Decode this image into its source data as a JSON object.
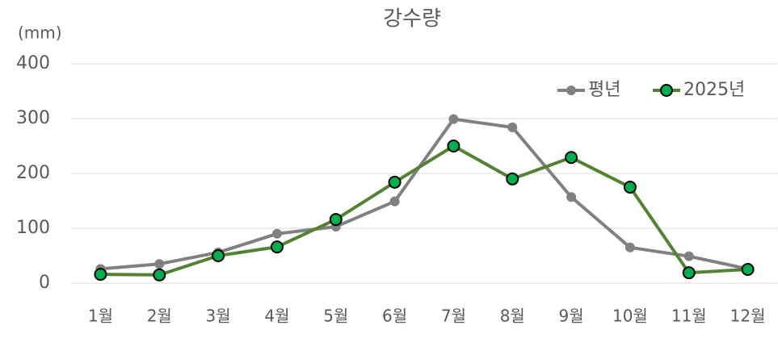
{
  "chart_data": {
    "type": "line",
    "title": "강수량",
    "y_label": "(mm)",
    "categories": [
      "1월",
      "2월",
      "3월",
      "4월",
      "5월",
      "6월",
      "7월",
      "8월",
      "9월",
      "10월",
      "11월",
      "12월"
    ],
    "series": [
      {
        "name": "평년",
        "color": "#808080",
        "marker_fill": "#808080",
        "marker_edge": "#808080",
        "values": [
          26,
          35,
          56,
          90,
          103,
          149,
          299,
          284,
          157,
          65,
          49,
          26
        ]
      },
      {
        "name": "2025년",
        "color": "#548235",
        "marker_fill": "#00b050",
        "marker_edge": "#000000",
        "values": [
          16,
          15,
          50,
          66,
          116,
          184,
          250,
          190,
          229,
          175,
          19,
          25
        ]
      }
    ],
    "ylim": [
      0,
      400
    ],
    "yticks": [
      0,
      100,
      200,
      300,
      400
    ],
    "grid": true,
    "legend": "top-right"
  }
}
